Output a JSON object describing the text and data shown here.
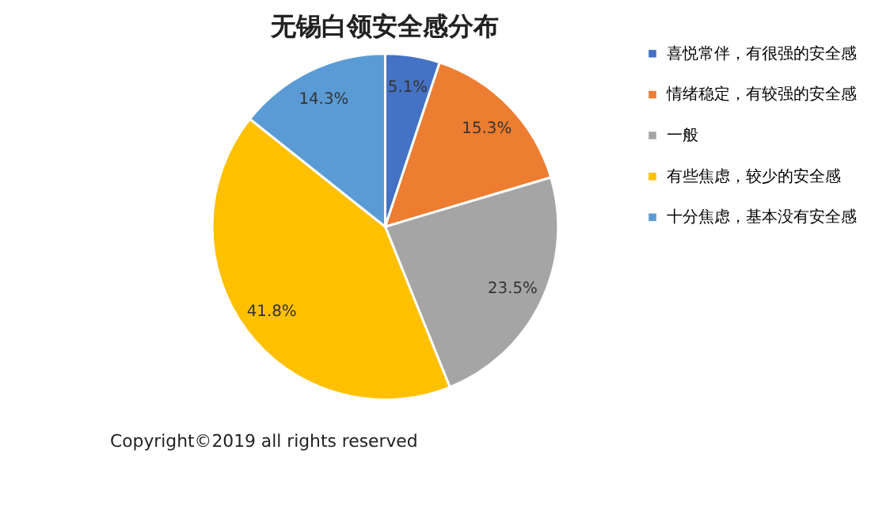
{
  "chart_data": {
    "type": "pie",
    "title": "无锡白领安全感分布",
    "categories": [
      "喜悦常伴，有很强的安全感",
      "情绪稳定，有较强的安全感",
      "一般",
      "有些焦虑，较少的安全感",
      "十分焦虑，基本没有安全感"
    ],
    "values": [
      5.1,
      15.3,
      23.5,
      41.8,
      14.3
    ],
    "value_labels": [
      "5.1%",
      "15.3%",
      "23.5%",
      "41.8%",
      "14.3%"
    ],
    "colors": [
      "#4472c4",
      "#ed7d31",
      "#a5a5a5",
      "#ffc000",
      "#5b9bd5"
    ],
    "legend": "right",
    "annotations": [
      "Copyright©2019 all rights reserved"
    ]
  }
}
